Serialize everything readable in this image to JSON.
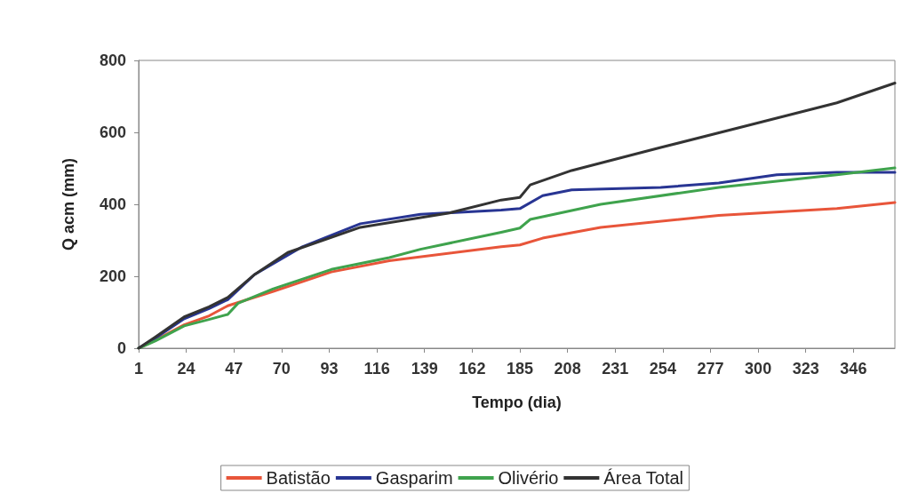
{
  "chart_data": {
    "type": "line",
    "xlabel": "Tempo (dia)",
    "ylabel": "Q acm (mm)",
    "xlim": [
      1,
      366
    ],
    "xticks": [
      1,
      24,
      47,
      70,
      93,
      116,
      139,
      162,
      185,
      208,
      231,
      254,
      277,
      300,
      323,
      346
    ],
    "ylim": [
      0,
      800
    ],
    "yticks": [
      0,
      200,
      400,
      600,
      800
    ],
    "grid": false,
    "legend": "bottom",
    "marker": "none",
    "line_style": "solid",
    "series": [
      {
        "name": "Batistão",
        "color": "#e8553a",
        "x": [
          1,
          9,
          23,
          35,
          44,
          66,
          94,
          122,
          176,
          185,
          196,
          224,
          281,
          338,
          366
        ],
        "values": [
          0,
          22,
          65,
          90,
          118,
          158,
          212,
          243,
          282,
          287,
          306,
          336,
          369,
          388,
          405
        ]
      },
      {
        "name": "Gasparim",
        "color": "#283593",
        "x": [
          1,
          9,
          23,
          35,
          44,
          57,
          80,
          108,
          137,
          176,
          185,
          196,
          210,
          253,
          281,
          309,
          338,
          366
        ],
        "values": [
          0,
          28,
          82,
          110,
          135,
          205,
          282,
          346,
          372,
          384,
          388,
          424,
          440,
          447,
          459,
          482,
          489,
          489
        ]
      },
      {
        "name": "Olivério",
        "color": "#3fa34d",
        "x": [
          1,
          9,
          23,
          35,
          44,
          49,
          66,
          94,
          122,
          137,
          176,
          185,
          190,
          224,
          281,
          338,
          366
        ],
        "values": [
          0,
          20,
          62,
          80,
          94,
          125,
          165,
          219,
          252,
          275,
          322,
          334,
          358,
          400,
          447,
          482,
          501
        ]
      },
      {
        "name": "Área Total",
        "color": "#333333",
        "x": [
          1,
          9,
          23,
          35,
          44,
          57,
          73,
          108,
          151,
          176,
          185,
          190,
          210,
          253,
          295,
          338,
          366
        ],
        "values": [
          0,
          31,
          87,
          115,
          141,
          205,
          266,
          336,
          376,
          412,
          419,
          454,
          494,
          558,
          619,
          682,
          737
        ]
      }
    ]
  }
}
